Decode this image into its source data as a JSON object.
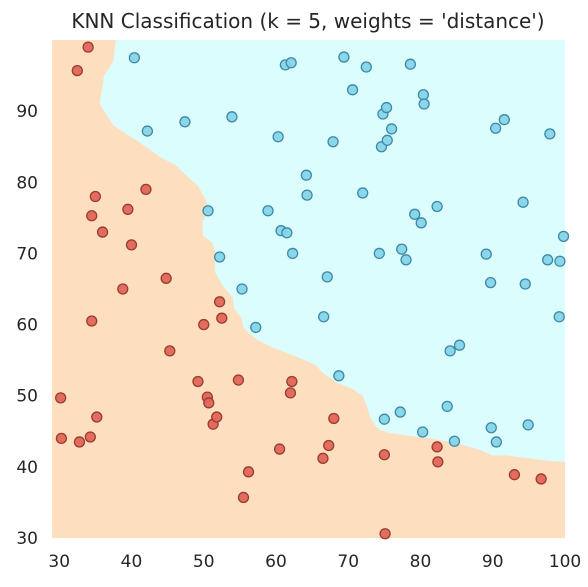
{
  "chart_data": {
    "type": "scatter",
    "title": "KNN Classification (k = 5, weights = 'distance')",
    "xlabel": "",
    "ylabel": "",
    "xlim": [
      29,
      100
    ],
    "ylim": [
      30,
      100
    ],
    "xticks": [
      30,
      40,
      50,
      60,
      70,
      80,
      90,
      100
    ],
    "yticks": [
      30,
      40,
      50,
      60,
      70,
      80,
      90
    ],
    "grid": false,
    "legend": "none",
    "colors": {
      "region_orange": "#fddfc0",
      "region_cyan": "#dbfdfd",
      "point_red": "#e06658",
      "point_red_edge": "#9a3c30",
      "point_blue": "#86d4ea",
      "point_blue_edge": "#3e8aa6"
    },
    "decision_boundary": [
      [
        37.8,
        100
      ],
      [
        37.5,
        97
      ],
      [
        36.2,
        95
      ],
      [
        35.6,
        91
      ],
      [
        37.5,
        88
      ],
      [
        42,
        85
      ],
      [
        44,
        83.5
      ],
      [
        46,
        82.5
      ],
      [
        47.5,
        81
      ],
      [
        49.2,
        79.5
      ],
      [
        50.3,
        77.5
      ],
      [
        50.8,
        76
      ],
      [
        49.8,
        74.5
      ],
      [
        49.9,
        72.5
      ],
      [
        51.2,
        71.5
      ],
      [
        51.6,
        70.2
      ],
      [
        51.5,
        67.5
      ],
      [
        52.6,
        65.5
      ],
      [
        54,
        63.8
      ],
      [
        54.2,
        62.2
      ],
      [
        55.2,
        61
      ],
      [
        55.5,
        59.5
      ],
      [
        57.5,
        57.8
      ],
      [
        59.5,
        56.8
      ],
      [
        61.5,
        56
      ],
      [
        63.5,
        55.2
      ],
      [
        65.5,
        54.3
      ],
      [
        66.5,
        53.2
      ],
      [
        67.5,
        52.5
      ],
      [
        68.5,
        51.8
      ],
      [
        70.5,
        51
      ],
      [
        72,
        50
      ],
      [
        72.6,
        48.5
      ],
      [
        73,
        47
      ],
      [
        73.6,
        46
      ],
      [
        74.2,
        45.3
      ],
      [
        75.5,
        44.8
      ],
      [
        77.5,
        44.5
      ],
      [
        79.5,
        44.2
      ],
      [
        81.2,
        44
      ],
      [
        83,
        43.7
      ],
      [
        85,
        43.3
      ],
      [
        88,
        42.5
      ],
      [
        90,
        41.6
      ],
      [
        92,
        41.6
      ],
      [
        95,
        41.2
      ],
      [
        98,
        40.8
      ],
      [
        100,
        40.7
      ]
    ],
    "series": [
      {
        "class": "orange",
        "points": [
          [
            34,
            99
          ],
          [
            32.5,
            95.7
          ],
          [
            35,
            78
          ],
          [
            34.5,
            75.3
          ],
          [
            36,
            73
          ],
          [
            39.5,
            76.2
          ],
          [
            40,
            71.2
          ],
          [
            42,
            79
          ],
          [
            38.8,
            65
          ],
          [
            44.8,
            66.5
          ],
          [
            34.5,
            60.5
          ],
          [
            45.3,
            56.3
          ],
          [
            50,
            60
          ],
          [
            52.2,
            63.2
          ],
          [
            52.5,
            60.9
          ],
          [
            30.2,
            49.7
          ],
          [
            30.3,
            44
          ],
          [
            32.8,
            43.5
          ],
          [
            34.3,
            44.2
          ],
          [
            35.2,
            47
          ],
          [
            49.2,
            52
          ],
          [
            50.5,
            49.8
          ],
          [
            50.7,
            49
          ],
          [
            51.3,
            46
          ],
          [
            51.8,
            47
          ],
          [
            54.8,
            52.2
          ],
          [
            56.2,
            39.3
          ],
          [
            55.5,
            35.7
          ],
          [
            60.5,
            42.5
          ],
          [
            62.2,
            52
          ],
          [
            62,
            50.4
          ],
          [
            66.5,
            41.2
          ],
          [
            67.3,
            43
          ],
          [
            68,
            46.8
          ],
          [
            75,
            41.7
          ],
          [
            75.1,
            30.6
          ],
          [
            82.3,
            42.8
          ],
          [
            82.4,
            40.7
          ],
          [
            93,
            38.9
          ],
          [
            96.7,
            38.3
          ]
        ]
      },
      {
        "class": "cyan",
        "points": [
          [
            40.4,
            97.5
          ],
          [
            42.2,
            87.2
          ],
          [
            47.4,
            88.5
          ],
          [
            53.9,
            89.2
          ],
          [
            50.6,
            76
          ],
          [
            52.2,
            69.5
          ],
          [
            55.3,
            65
          ],
          [
            57.2,
            59.6
          ],
          [
            58.9,
            76
          ],
          [
            60.3,
            86.4
          ],
          [
            60.7,
            73.2
          ],
          [
            61.3,
            96.5
          ],
          [
            61.5,
            72.9
          ],
          [
            62.1,
            96.8
          ],
          [
            62.3,
            70
          ],
          [
            64.2,
            81
          ],
          [
            64.3,
            78.2
          ],
          [
            66.6,
            61.1
          ],
          [
            67.1,
            66.7
          ],
          [
            67.9,
            85.7
          ],
          [
            68.7,
            52.8
          ],
          [
            69.4,
            97.6
          ],
          [
            70.6,
            93
          ],
          [
            72,
            78.5
          ],
          [
            72.5,
            96.2
          ],
          [
            74.3,
            70
          ],
          [
            74.6,
            85
          ],
          [
            74.8,
            89.6
          ],
          [
            75,
            46.7
          ],
          [
            75.3,
            90.5
          ],
          [
            75.4,
            85.9
          ],
          [
            76,
            87.5
          ],
          [
            77.2,
            47.7
          ],
          [
            77.4,
            70.6
          ],
          [
            78,
            69.1
          ],
          [
            78.6,
            96.6
          ],
          [
            79.2,
            75.5
          ],
          [
            80.1,
            74.3
          ],
          [
            80.3,
            44.9
          ],
          [
            80.4,
            92.3
          ],
          [
            80.5,
            91
          ],
          [
            82.3,
            76.6
          ],
          [
            83.7,
            48.5
          ],
          [
            84.1,
            56.3
          ],
          [
            84.7,
            43.6
          ],
          [
            85.4,
            57.1
          ],
          [
            89.1,
            69.9
          ],
          [
            89.7,
            65.9
          ],
          [
            89.8,
            45.5
          ],
          [
            90.4,
            87.6
          ],
          [
            90.5,
            43.5
          ],
          [
            91.6,
            88.8
          ],
          [
            94.2,
            77.2
          ],
          [
            94.5,
            65.7
          ],
          [
            94.9,
            45.9
          ],
          [
            97.6,
            69.1
          ],
          [
            97.9,
            86.8
          ],
          [
            99.2,
            61.1
          ],
          [
            99.3,
            68.9
          ],
          [
            99.8,
            72.4
          ]
        ]
      }
    ]
  }
}
